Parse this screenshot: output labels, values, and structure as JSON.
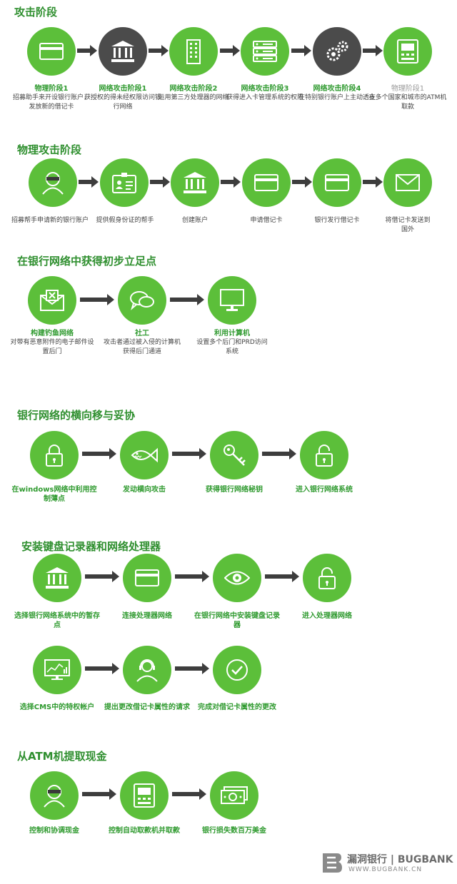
{
  "sections": [
    {
      "title": "攻击阶段"
    },
    {
      "title": "物理攻击阶段"
    },
    {
      "title": "在银行网络中获得初步立足点"
    },
    {
      "title": "银行网络的横向移与妥协"
    },
    {
      "title": "安装键盘记录器和网络处理器"
    },
    {
      "title": "从ATM机提取现金"
    }
  ],
  "row1": [
    {
      "title": "物理阶段1",
      "desc": "招募助手来开设银行账户，发放新的借记卡",
      "icon": "credit-card-icon"
    },
    {
      "title": "网络攻击阶段1",
      "desc": "获授权的得未经权限访问银行网络",
      "icon": "bank-icon"
    },
    {
      "title": "网络攻击阶段2",
      "desc": "运用第三方处理器的网络",
      "icon": "building-icon"
    },
    {
      "title": "网络攻击阶段3",
      "desc": "获得进入卡管理系统的权限",
      "icon": "server-icon"
    },
    {
      "title": "网络攻击阶段4",
      "desc": "在特别银行账户上主动透支",
      "icon": "gears-icon"
    },
    {
      "title": "物理阶段1",
      "desc": "在多个国家和城市的ATM机取款",
      "icon": "atm-icon"
    }
  ],
  "row2": [
    {
      "desc": "招募帮手申请新的银行账户",
      "icon": "masked-person-icon"
    },
    {
      "desc": "提供假身份证的帮手",
      "icon": "id-card-icon"
    },
    {
      "desc": "创建账户",
      "icon": "bank-icon"
    },
    {
      "desc": "申请借记卡",
      "icon": "credit-card-icon"
    },
    {
      "desc": "银行发行借记卡",
      "icon": "credit-card-icon"
    },
    {
      "desc": "将借记卡发送到国外",
      "icon": "envelope-icon"
    }
  ],
  "row3": [
    {
      "title": "构建钓鱼网络",
      "desc": "对带有恶意附件的电子邮件设置后门",
      "icon": "phishing-mail-icon"
    },
    {
      "title": "社工",
      "desc": "攻击者通过被入侵的计算机获得后门通道",
      "icon": "chat-bubbles-icon"
    },
    {
      "title": "利用计算机",
      "desc": "设置多个后门和PRD访问系统",
      "icon": "monitor-icon"
    }
  ],
  "row4": [
    {
      "title": "在windows网络中利用控制薄点",
      "icon": "lock-icon"
    },
    {
      "title": "发动横向攻击",
      "icon": "fish-icon"
    },
    {
      "title": "获得银行网络秘钥",
      "icon": "key-icon"
    },
    {
      "title": "进入银行网络系统",
      "icon": "unlock-icon"
    }
  ],
  "row5": [
    {
      "title": "选择银行网络系统中的暂存点",
      "icon": "bank-icon"
    },
    {
      "title": "连接处理器网络",
      "icon": "credit-card-icon"
    },
    {
      "title": "在银行网络中安装键盘记录器",
      "icon": "eye-icon"
    },
    {
      "title": "进入处理器网络",
      "icon": "unlock-icon"
    }
  ],
  "row6": [
    {
      "title": "选择CMS中的特权帐户",
      "icon": "dashboard-monitor-icon"
    },
    {
      "title": "提出更改借记卡属性的请求",
      "icon": "operator-icon"
    },
    {
      "title": "完成对借记卡属性的更改",
      "icon": "check-circle-icon"
    }
  ],
  "row7": [
    {
      "title": "控制和协调现金",
      "icon": "masked-person-icon"
    },
    {
      "title": "控制自动取款机并取款",
      "icon": "atm-icon"
    },
    {
      "title": "银行损失数百万美金",
      "icon": "cash-icon"
    }
  ],
  "logo": {
    "name": "漏洞银行 | BUGBANK",
    "url": "WWW.BUGBANK.CN"
  },
  "colors": {
    "green": "#5cbf3a",
    "dark": "#4b4b4b",
    "title": "#2f8f2f"
  }
}
